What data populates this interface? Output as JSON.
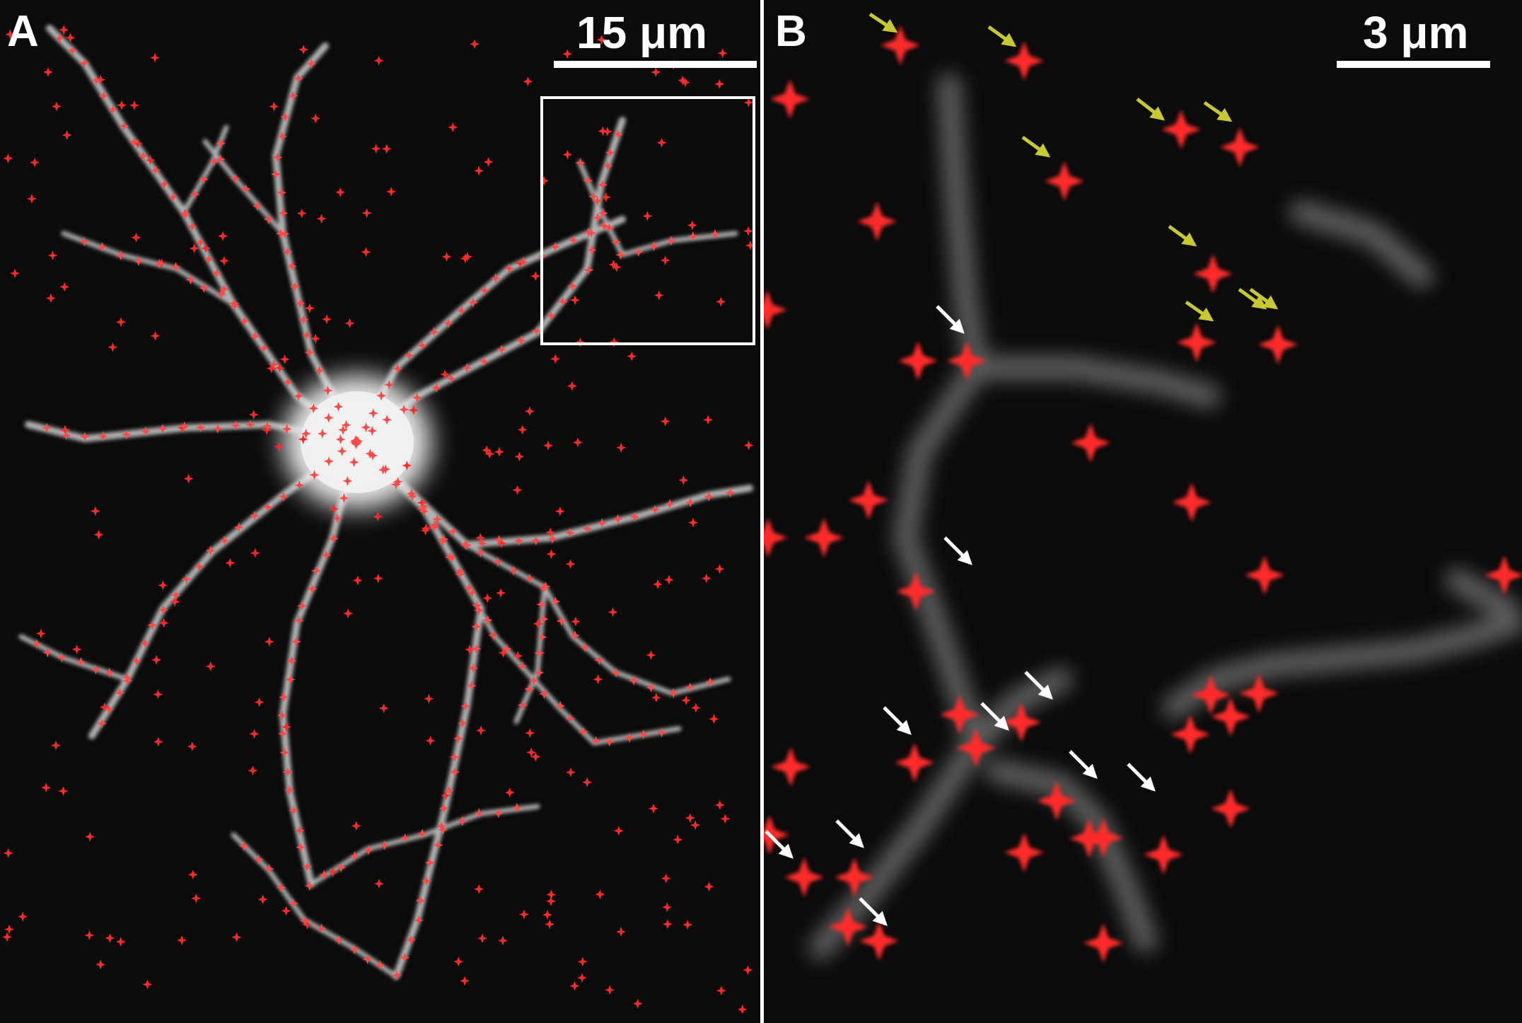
{
  "figure": {
    "panel_a": {
      "letter": "A",
      "scale_bar_label": "15 μm",
      "marker_color": "#ff2222",
      "neuron_color": "#d8d8d8",
      "inset_box_color": "#ffffff"
    },
    "panel_b": {
      "letter": "B",
      "scale_bar_label": "3 μm",
      "marker_color": "#ff2222",
      "on_dendrite_arrow_color": "#ffffff",
      "off_dendrite_arrow_color": "#c8c832"
    }
  }
}
